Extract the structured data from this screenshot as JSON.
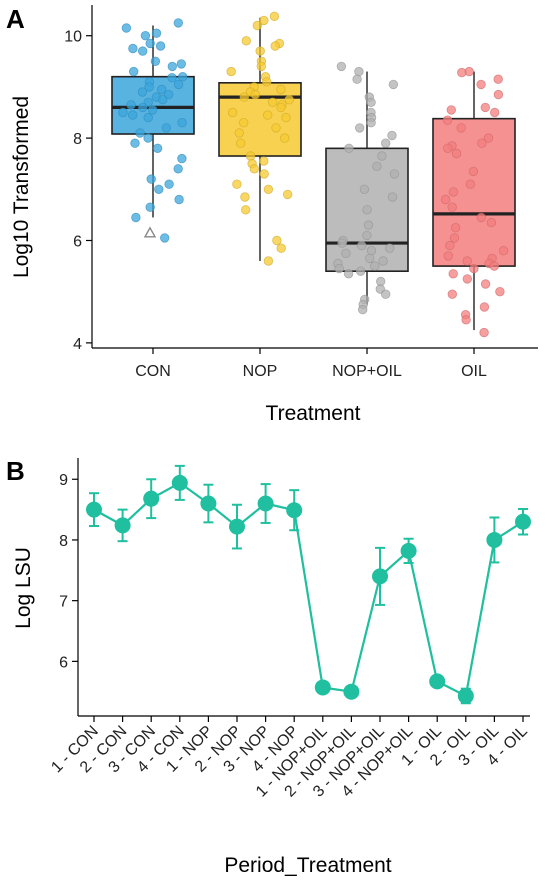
{
  "chart_data": [
    {
      "panel": "A",
      "type": "box",
      "xlabel": "Treatment",
      "ylabel": "Log10 Transformed",
      "ylim": [
        3.9,
        10.6
      ],
      "yticks": [
        4,
        6,
        8,
        10
      ],
      "categories": [
        "CON",
        "NOP",
        "NOP+OIL",
        "OIL"
      ],
      "colors": [
        "#3ba6dc",
        "#f7c932",
        "#b0b0b0",
        "#f47e7e"
      ],
      "boxes": [
        {
          "name": "CON",
          "whisker_low": 6.45,
          "q1": 8.08,
          "median": 8.6,
          "q3": 9.2,
          "whisker_high": 10.2,
          "outliers": [
            6.15
          ]
        },
        {
          "name": "NOP",
          "whisker_low": 5.6,
          "q1": 7.65,
          "median": 8.8,
          "q3": 9.08,
          "whisker_high": 10.35,
          "outliers": []
        },
        {
          "name": "NOP+OIL",
          "whisker_low": 4.75,
          "q1": 5.4,
          "median": 5.95,
          "q3": 7.8,
          "whisker_high": 9.3,
          "outliers": []
        },
        {
          "name": "OIL",
          "whisker_low": 4.25,
          "q1": 5.5,
          "median": 6.52,
          "q3": 8.38,
          "whisker_high": 9.3,
          "outliers": []
        }
      ],
      "points": [
        [
          10.25,
          10.15,
          10.05,
          10.0,
          9.85,
          9.8,
          9.75,
          9.7,
          9.5,
          9.45,
          9.4,
          9.3,
          9.2,
          9.18,
          9.1,
          9.05,
          9.0,
          8.95,
          8.9,
          8.85,
          8.8,
          8.75,
          8.7,
          8.65,
          8.6,
          8.55,
          8.5,
          8.45,
          8.4,
          8.3,
          8.2,
          8.1,
          8.0,
          7.9,
          7.8,
          7.6,
          7.4,
          7.2,
          7.1,
          7.0,
          6.8,
          6.65,
          6.45,
          6.05
        ],
        [
          10.38,
          10.3,
          10.2,
          9.9,
          9.85,
          9.8,
          9.7,
          9.5,
          9.4,
          9.3,
          9.2,
          9.1,
          9.0,
          8.95,
          8.9,
          8.85,
          8.8,
          8.75,
          8.7,
          8.65,
          8.6,
          8.5,
          8.45,
          8.4,
          8.3,
          8.2,
          8.1,
          8.0,
          7.9,
          7.65,
          7.55,
          7.5,
          7.4,
          7.3,
          7.1,
          7.0,
          6.9,
          6.85,
          6.6,
          6.0,
          5.85,
          5.6
        ],
        [
          9.4,
          9.3,
          9.15,
          9.05,
          8.8,
          8.7,
          8.5,
          8.4,
          8.3,
          8.2,
          8.05,
          7.9,
          7.8,
          7.65,
          7.45,
          7.3,
          7.0,
          6.85,
          6.6,
          6.3,
          6.1,
          6.0,
          5.95,
          5.9,
          5.85,
          5.8,
          5.75,
          5.65,
          5.6,
          5.55,
          5.5,
          5.45,
          5.4,
          5.35,
          5.2,
          5.05,
          4.95,
          4.85,
          4.75,
          4.65
        ],
        [
          9.3,
          9.28,
          9.15,
          9.05,
          8.85,
          8.6,
          8.55,
          8.5,
          8.35,
          8.2,
          8.0,
          7.9,
          7.85,
          7.8,
          7.7,
          7.35,
          7.1,
          6.95,
          6.8,
          6.65,
          6.45,
          6.35,
          6.25,
          6.05,
          5.9,
          5.8,
          5.7,
          5.65,
          5.6,
          5.55,
          5.5,
          5.45,
          5.35,
          5.25,
          5.15,
          5.0,
          4.95,
          4.7,
          4.55,
          4.45,
          4.2
        ]
      ]
    },
    {
      "panel": "B",
      "type": "line",
      "xlabel": "Period_Treatment",
      "ylabel": "Log LSU",
      "ylim": [
        5.1,
        9.35
      ],
      "yticks": [
        6,
        7,
        8,
        9
      ],
      "color": "#1fbf9f",
      "categories": [
        "1 - CON",
        "2 - CON",
        "3 - CON",
        "4 - CON",
        "1 - NOP",
        "2 - NOP",
        "3 - NOP",
        "4 - NOP",
        "1 - NOP+OIL",
        "2 - NOP+OIL",
        "3 - NOP+OIL",
        "4 - NOP+OIL",
        "1 - OIL",
        "2 - OIL",
        "3 - OIL",
        "4 - OIL"
      ],
      "values": [
        8.5,
        8.24,
        8.68,
        8.94,
        8.6,
        8.22,
        8.6,
        8.49,
        5.57,
        5.5,
        7.4,
        7.82,
        5.67,
        5.43,
        8.0,
        8.3
      ],
      "error": [
        0.27,
        0.26,
        0.32,
        0.28,
        0.31,
        0.36,
        0.32,
        0.33,
        0.04,
        0.04,
        0.47,
        0.2,
        0.05,
        0.12,
        0.37,
        0.21
      ]
    }
  ]
}
